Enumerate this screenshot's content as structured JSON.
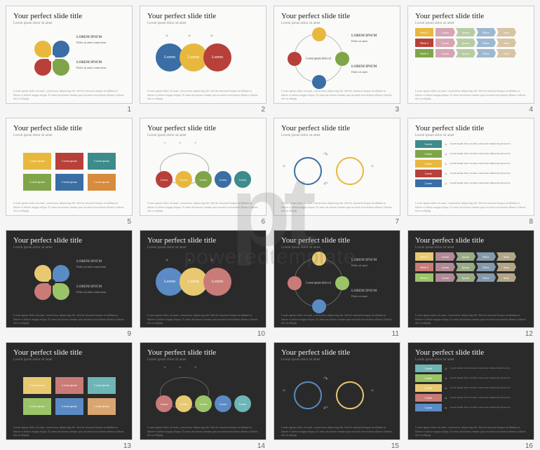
{
  "slide_title": "Your perfect slide title",
  "slide_sub": "Lorem ipsum dolor sit amet",
  "footer": "Lorem ipsum dolor sit amet, consectetur adipiscing elit. Sed do eiusmod tempor incididunt ut labore et dolore magna aliqua. Ut enim ad minim veniam quis nostrud exercitation ullamco laboris nisi ut aliquip.",
  "watermark": {
    "logo": "pt",
    "text": "poweredtemplate"
  },
  "palette_light": {
    "blue": "#3a6ea5",
    "green": "#7fa548",
    "yellow": "#e8b83e",
    "red": "#b8403a",
    "teal": "#3d8b8b",
    "orange": "#d88a3d",
    "grey": "#9aa0a6",
    "pink": "#d6a5b3",
    "pale_green": "#b8cca3",
    "pale_blue": "#9db8d1"
  },
  "palette_dark": {
    "blue": "#5a8bc4",
    "green": "#9bc468",
    "yellow": "#e8c972",
    "red": "#c97b78",
    "teal": "#6fb5b5",
    "orange": "#d9a570",
    "grey": "#aab2bb",
    "pink": "#d6a5b3",
    "pale_green": "#b8cca3",
    "pale_blue": "#9db8d1"
  },
  "slide1": {
    "layout": "flower-petals",
    "petal_colors_light": [
      "#e8b83e",
      "#3a6ea5",
      "#b8403a",
      "#7fa548"
    ],
    "petal_colors_dark": [
      "#e8c972",
      "#5a8bc4",
      "#c97b78",
      "#9bc468"
    ],
    "side_blocks": [
      {
        "hd": "LOREM IPSUM",
        "tx": "Dolor sit amet consectetur"
      },
      {
        "hd": "LOREM IPSUM",
        "tx": "Dolor sit amet consectetur"
      },
      {
        "hd": "LOREM IPSUM",
        "tx": "Dolor sit amet consectetur"
      },
      {
        "hd": "LOREM IPSUM",
        "tx": "Dolor sit amet consectetur"
      }
    ]
  },
  "slide2": {
    "layout": "three-circles",
    "labels": [
      "Lorem",
      "Lorem",
      "Lorem"
    ],
    "colors_light": [
      "#3a6ea5",
      "#e8b83e",
      "#b8403a"
    ],
    "colors_dark": [
      "#5a8bc4",
      "#e8c972",
      "#c97b78"
    ]
  },
  "slide3": {
    "layout": "cycle-4",
    "colors_light": [
      "#e8b83e",
      "#7fa548",
      "#3a6ea5",
      "#b8403a"
    ],
    "colors_dark": [
      "#e8c972",
      "#9bc468",
      "#5a8bc4",
      "#c97b78"
    ],
    "center_text": "Lorem ipsum dolor sit"
  },
  "slide4": {
    "layout": "arrow-rows",
    "rows": [
      {
        "label": "Week 1",
        "color_l": "#e8b83e",
        "color_d": "#e8c972",
        "items": [
          "Lorem",
          "Ipsum",
          "Dolor",
          "Amet"
        ],
        "item_colors_l": [
          "#d6a5b3",
          "#b8cca3",
          "#9db8d1",
          "#d6c4a3"
        ],
        "item_colors_d": [
          "#b28a97",
          "#99ab86",
          "#8399ac",
          "#b3a588"
        ]
      },
      {
        "label": "Week 2",
        "color_l": "#b8403a",
        "color_d": "#c97b78",
        "items": [
          "Lorem",
          "Ipsum",
          "Dolor",
          "Amet"
        ],
        "item_colors_l": [
          "#d6a5b3",
          "#b8cca3",
          "#9db8d1",
          "#d6c4a3"
        ],
        "item_colors_d": [
          "#b28a97",
          "#99ab86",
          "#8399ac",
          "#b3a588"
        ]
      },
      {
        "label": "Week 3",
        "color_l": "#7fa548",
        "color_d": "#9bc468",
        "items": [
          "Lorem",
          "Ipsum",
          "Dolor",
          "Amet"
        ],
        "item_colors_l": [
          "#d6a5b3",
          "#b8cca3",
          "#9db8d1",
          "#d6c4a3"
        ],
        "item_colors_d": [
          "#b28a97",
          "#99ab86",
          "#8399ac",
          "#b3a588"
        ]
      }
    ]
  },
  "slide5": {
    "layout": "boxes-6",
    "label": "Lorem ipsum",
    "colors_light": [
      "#e8b83e",
      "#b8403a",
      "#3d8b8b",
      "#7fa548",
      "#3a6ea5",
      "#d88a3d"
    ],
    "colors_dark": [
      "#e8c972",
      "#c97b78",
      "#6fb5b5",
      "#9bc468",
      "#5a8bc4",
      "#d9a570"
    ]
  },
  "slide6": {
    "layout": "circles-5",
    "label": "Lorem",
    "colors_light": [
      "#b8403a",
      "#e8b83e",
      "#7fa548",
      "#3a6ea5",
      "#3d8b8b"
    ],
    "colors_dark": [
      "#c97b78",
      "#e8c972",
      "#9bc468",
      "#5a8bc4",
      "#6fb5b5"
    ]
  },
  "slide7": {
    "layout": "two-rings",
    "colors_light": [
      "#3a6ea5",
      "#e8b83e"
    ],
    "colors_dark": [
      "#5a8bc4",
      "#e8c972"
    ]
  },
  "slide8": {
    "layout": "list-rows",
    "rows": [
      {
        "label": "Lorem",
        "color_l": "#3d8b8b",
        "color_d": "#6fb5b5"
      },
      {
        "label": "Lorem",
        "color_l": "#7fa548",
        "color_d": "#9bc468"
      },
      {
        "label": "Lorem",
        "color_l": "#e8b83e",
        "color_d": "#e8c972"
      },
      {
        "label": "Lorem",
        "color_l": "#b8403a",
        "color_d": "#c97b78"
      },
      {
        "label": "Lorem",
        "color_l": "#3a6ea5",
        "color_d": "#5a8bc4"
      }
    ],
    "right_text": "Lorem ipsum dolor sit amet consectetur adipiscing elit sed do"
  }
}
